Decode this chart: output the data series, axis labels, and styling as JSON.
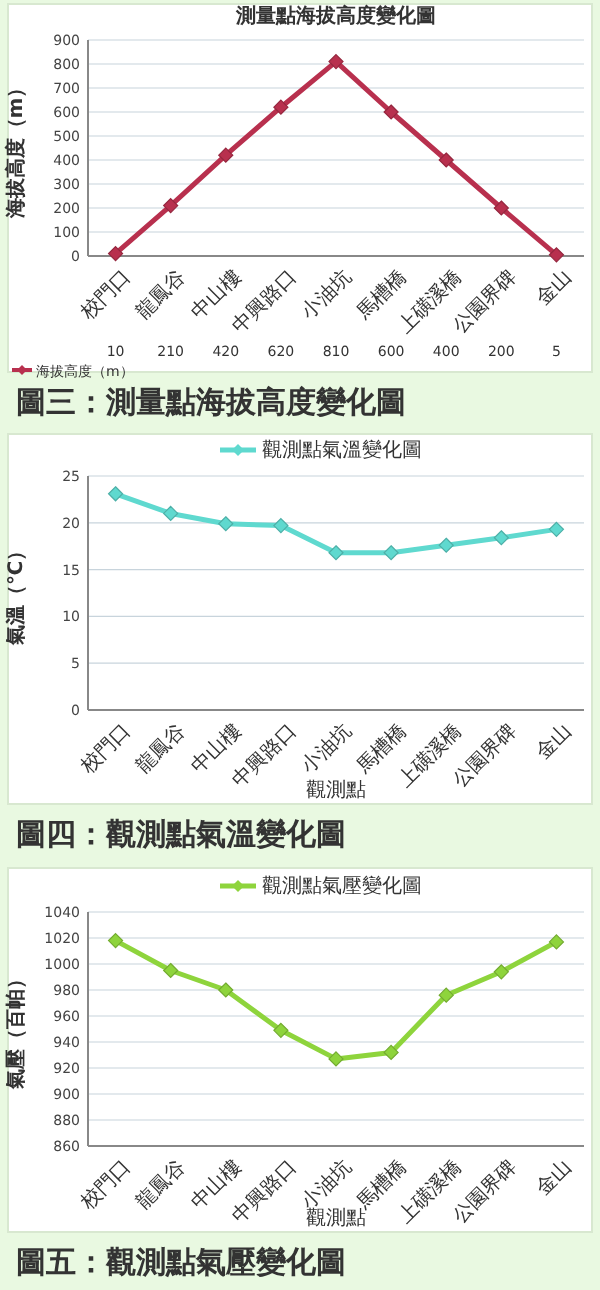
{
  "chart_data": [
    {
      "type": "line",
      "title": "測量點海拔高度變化圖",
      "ylabel": "海拔高度（m）",
      "categories": [
        "校門口",
        "龍鳳谷",
        "中山樓",
        "中興路口",
        "小油坑",
        "馬槽橋",
        "上磺溪橋",
        "公園界碑",
        "金山"
      ],
      "series": [
        {
          "name": "海拔高度（m）",
          "color": "#b8304e",
          "values": [
            10,
            210,
            420,
            620,
            810,
            600,
            400,
            200,
            5
          ]
        }
      ],
      "ylim": [
        0,
        900
      ],
      "yticks": [
        0,
        100,
        200,
        300,
        400,
        500,
        600,
        700,
        800,
        900
      ],
      "grid": "y",
      "legend": "bottom",
      "marker": "diamond",
      "data_labels": true,
      "annotations": [
        "圖三：測量點海拔高度變化圖"
      ]
    },
    {
      "type": "line",
      "xlabel": "觀測點",
      "ylabel": "氣溫（℃）",
      "categories": [
        "校門口",
        "龍鳳谷",
        "中山樓",
        "中興路口",
        "小油坑",
        "馬槽橋",
        "上磺溪橋",
        "公園界碑",
        "金山"
      ],
      "series": [
        {
          "name": "觀測點氣溫變化圖",
          "color": "#5fd9cf",
          "values": [
            23.1,
            21,
            19.9,
            19.7,
            16.8,
            16.8,
            17.6,
            18.4,
            19.3
          ]
        }
      ],
      "ylim": [
        0,
        25
      ],
      "yticks": [
        0,
        5,
        10,
        15,
        20,
        25
      ],
      "grid": "y",
      "legend": "top",
      "marker": "diamond",
      "annotations": [
        "圖四：觀測點氣溫變化圖"
      ]
    },
    {
      "type": "line",
      "xlabel": "觀測點",
      "ylabel": "氣壓（百帕）",
      "categories": [
        "校門口",
        "龍鳳谷",
        "中山樓",
        "中興路口",
        "小油坑",
        "馬槽橋",
        "上磺溪橋",
        "公園界碑",
        "金山"
      ],
      "series": [
        {
          "name": "觀測點氣壓變化圖",
          "color": "#8ed43c",
          "values": [
            1018,
            995,
            980,
            949,
            927,
            932,
            976,
            994,
            1017
          ]
        }
      ],
      "ylim": [
        860,
        1040
      ],
      "yticks": [
        860,
        880,
        900,
        920,
        940,
        960,
        980,
        1000,
        1020,
        1040
      ],
      "grid": "y",
      "legend": "top",
      "marker": "diamond",
      "annotations": [
        "圖五：觀測點氣壓變化圖"
      ]
    }
  ]
}
